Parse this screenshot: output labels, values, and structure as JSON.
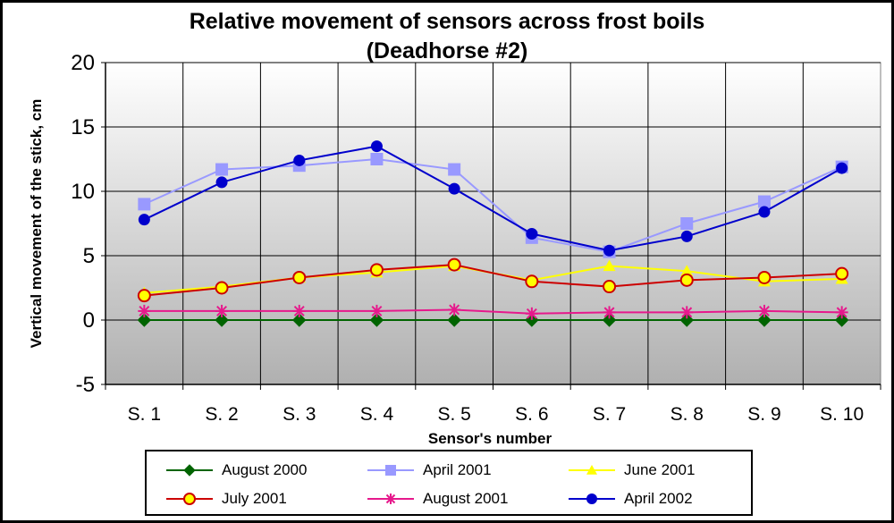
{
  "chart_data": {
    "type": "line",
    "title": "Relative movement of sensors across frost boils",
    "subtitle": "(Deadhorse #2)",
    "xlabel": "Sensor's number",
    "ylabel": "Vertical movement of the stick, cm",
    "categories": [
      "S. 1",
      "S. 2",
      "S. 3",
      "S. 4",
      "S. 5",
      "S. 6",
      "S. 7",
      "S. 8",
      "S. 9",
      "S. 10"
    ],
    "ylim": [
      -5,
      20
    ],
    "yticks": [
      "-5",
      "0",
      "5",
      "10",
      "15",
      "20"
    ],
    "grid": true,
    "legend_position": "bottom",
    "series": [
      {
        "name": "August 2000",
        "values": [
          0,
          0,
          0,
          0,
          0,
          0,
          0,
          0,
          0,
          0
        ],
        "color": "#006400",
        "marker": "diamond"
      },
      {
        "name": "April 2001",
        "values": [
          9,
          11.7,
          12,
          12.5,
          11.7,
          6.4,
          5.3,
          7.5,
          9.2,
          11.9
        ],
        "color": "#9999ff",
        "marker": "square"
      },
      {
        "name": "June 2001",
        "values": [
          2.1,
          2.6,
          3.3,
          3.7,
          4.2,
          3.1,
          4.2,
          3.8,
          3.0,
          3.2
        ],
        "color": "#ffff00",
        "marker": "triangle"
      },
      {
        "name": "July 2001",
        "values": [
          1.9,
          2.5,
          3.3,
          3.9,
          4.3,
          3.0,
          2.6,
          3.1,
          3.3,
          3.6
        ],
        "color": "#cc0000",
        "marker": "circle-open"
      },
      {
        "name": "August 2001",
        "values": [
          0.7,
          0.7,
          0.7,
          0.7,
          0.8,
          0.5,
          0.6,
          0.6,
          0.7,
          0.6
        ],
        "color": "#e6198c",
        "marker": "star"
      },
      {
        "name": "April 2002",
        "values": [
          7.8,
          10.7,
          12.4,
          13.5,
          10.2,
          6.7,
          5.4,
          6.5,
          8.4,
          11.8
        ],
        "color": "#0000cc",
        "marker": "circle"
      }
    ]
  }
}
